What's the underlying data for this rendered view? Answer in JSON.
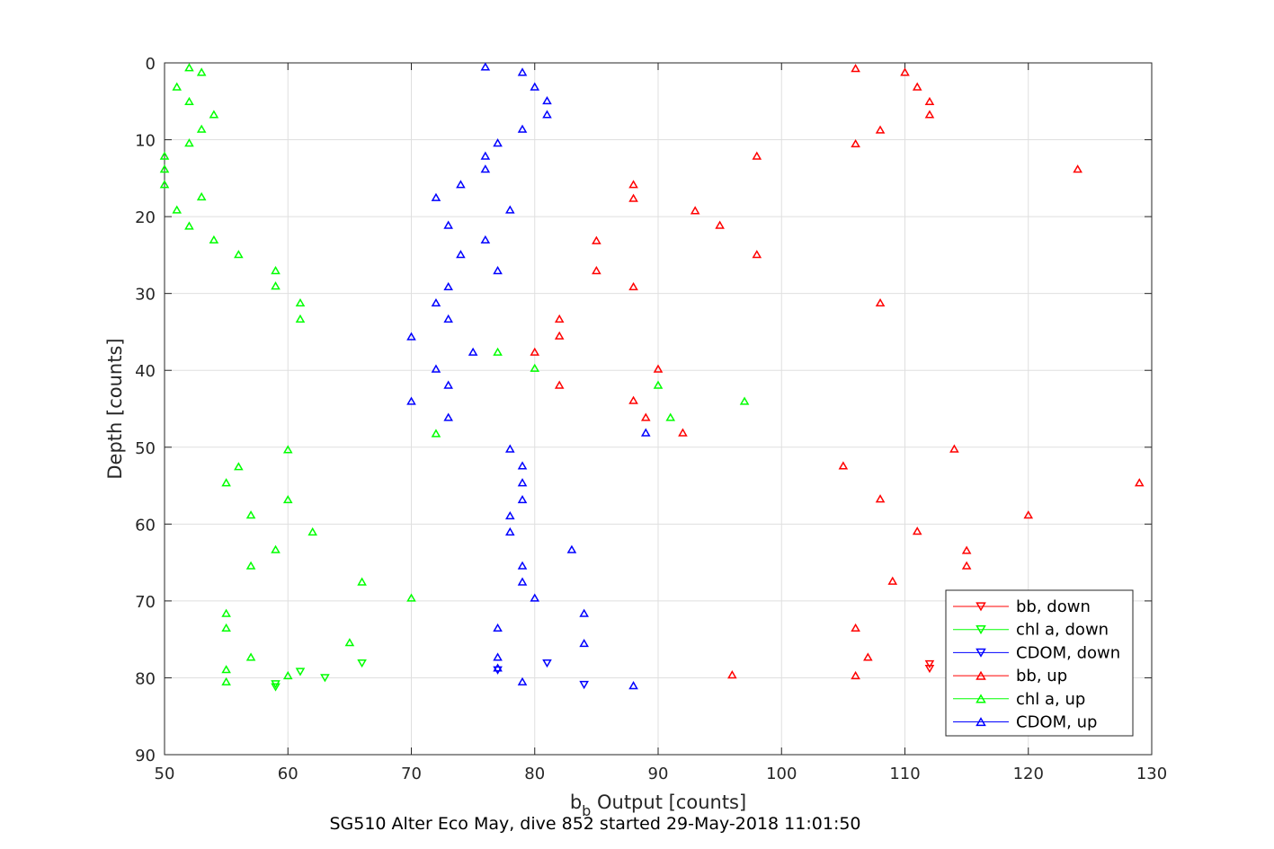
{
  "chart_data": {
    "type": "scatter",
    "title": "",
    "caption": "SG510 Alter Eco May, dive 852 started 29-May-2018 11:01:50",
    "xlabel_main": "b",
    "xlabel_sub": "b",
    "xlabel_rest": " Output [counts]",
    "ylabel": "Depth [counts]",
    "xlim": [
      50,
      130
    ],
    "ylim": [
      0,
      90
    ],
    "y_reversed": true,
    "grid": true,
    "legend_position": "bottom-right",
    "xticks": [
      "50",
      "60",
      "70",
      "80",
      "90",
      "100",
      "110",
      "120",
      "130"
    ],
    "yticks": [
      "0",
      "10",
      "20",
      "30",
      "40",
      "50",
      "60",
      "70",
      "80",
      "90"
    ],
    "series": [
      {
        "name": "bb, down",
        "color": "#ff0000",
        "marker": "triangle-down",
        "x": [
          112,
          112
        ],
        "y": [
          78.2,
          78.8
        ]
      },
      {
        "name": "chl a, down",
        "color": "#00ff00",
        "marker": "triangle-down",
        "x": [
          59,
          59,
          61,
          63,
          66
        ],
        "y": [
          80.8,
          81.2,
          79.2,
          80,
          78.1
        ]
      },
      {
        "name": "CDOM, down",
        "color": "#0000ff",
        "marker": "triangle-down",
        "x": [
          77,
          81,
          84
        ],
        "y": [
          79,
          78.1,
          80.9
        ]
      },
      {
        "name": "bb, up",
        "color": "#ff0000",
        "marker": "triangle-up",
        "x": [
          106,
          110,
          111,
          112,
          112,
          108,
          106,
          98,
          124,
          88,
          88,
          93,
          95,
          85,
          98,
          85,
          88,
          108,
          82,
          82,
          80,
          90,
          82,
          88,
          89,
          92,
          114,
          105,
          129,
          108,
          120,
          111,
          115,
          115,
          109,
          106,
          107,
          96,
          106
        ],
        "y": [
          0.7,
          1.2,
          3.1,
          5,
          6.7,
          8.7,
          10.5,
          12.1,
          13.8,
          15.8,
          17.6,
          19.2,
          21.1,
          23.1,
          24.9,
          27,
          29.1,
          31.2,
          33.3,
          35.5,
          37.6,
          39.8,
          41.9,
          43.9,
          46.1,
          48.1,
          50.2,
          52.4,
          54.6,
          56.7,
          58.8,
          60.9,
          63.4,
          65.4,
          67.4,
          73.5,
          77.3,
          79.6,
          79.7
        ]
      },
      {
        "name": "chl a, up",
        "color": "#00ff00",
        "marker": "triangle-up",
        "x": [
          52,
          53,
          51,
          52,
          54,
          53,
          52,
          50,
          50,
          50,
          53,
          51,
          52,
          54,
          56,
          59,
          59,
          61,
          61,
          77,
          80,
          90,
          97,
          91,
          72,
          60,
          56,
          55,
          60,
          57,
          62,
          59,
          57,
          66,
          70,
          55,
          55,
          65,
          57,
          55,
          60,
          55
        ],
        "y": [
          0.6,
          1.2,
          3.1,
          5,
          6.7,
          8.6,
          10.4,
          12.1,
          13.8,
          15.8,
          17.4,
          19.1,
          21.2,
          23,
          24.9,
          27,
          29,
          31.2,
          33.3,
          37.6,
          39.7,
          41.9,
          44,
          46.1,
          48.2,
          50.3,
          52.5,
          54.6,
          56.8,
          58.8,
          61,
          63.3,
          65.4,
          67.5,
          69.6,
          71.6,
          73.5,
          75.4,
          77.3,
          78.9,
          79.7,
          80.5
        ]
      },
      {
        "name": "CDOM, up",
        "color": "#0000ff",
        "marker": "triangle-up",
        "x": [
          76,
          79,
          80,
          81,
          81,
          79,
          77,
          76,
          76,
          74,
          72,
          78,
          73,
          76,
          74,
          77,
          73,
          72,
          73,
          70,
          75,
          72,
          73,
          70,
          73,
          89,
          78,
          79,
          79,
          79,
          78,
          78,
          83,
          79,
          79,
          80,
          84,
          77,
          84,
          77,
          77,
          79,
          88
        ],
        "y": [
          0.5,
          1.2,
          3.1,
          4.9,
          6.7,
          8.6,
          10.4,
          12.1,
          13.8,
          15.8,
          17.5,
          19.1,
          21.1,
          23,
          24.9,
          27,
          29.1,
          31.2,
          33.3,
          35.6,
          37.6,
          39.8,
          41.9,
          44,
          46.1,
          48.1,
          50.2,
          52.4,
          54.6,
          56.8,
          58.9,
          61,
          63.3,
          65.4,
          67.5,
          69.6,
          71.6,
          73.5,
          75.5,
          77.3,
          78.7,
          80.5,
          81
        ]
      }
    ]
  }
}
